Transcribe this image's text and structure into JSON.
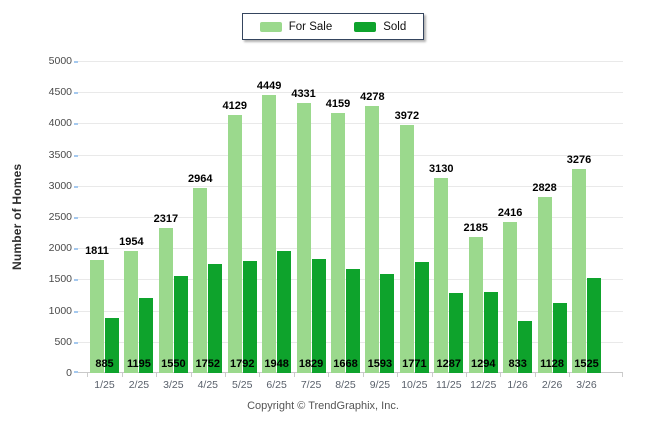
{
  "chart_data": {
    "type": "bar",
    "title": "",
    "categories": [
      "1/25",
      "2/25",
      "3/25",
      "4/25",
      "5/25",
      "6/25",
      "7/25",
      "8/25",
      "9/25",
      "10/25",
      "11/25",
      "12/25",
      "1/26",
      "2/26",
      "3/26"
    ],
    "series": [
      {
        "name": "For Sale",
        "color": "#9bd98d",
        "values": [
          1811,
          1954,
          2317,
          2964,
          4129,
          4449,
          4331,
          4159,
          4278,
          3972,
          3130,
          2185,
          2416,
          2828,
          3276
        ]
      },
      {
        "name": "Sold",
        "color": "#0ea32c",
        "values": [
          885,
          1195,
          1550,
          1752,
          1792,
          1948,
          1829,
          1668,
          1593,
          1771,
          1287,
          1294,
          833,
          1128,
          1525
        ]
      }
    ],
    "xlabel": "",
    "ylabel": "Number of Homes",
    "ylim": [
      0,
      5000
    ],
    "ytick_step": 500,
    "grid": true,
    "value_labels": "For Sale above bars, Sold at bar base",
    "legend_position": "top-center"
  },
  "legend": {
    "items": [
      {
        "label": "For Sale",
        "color": "#9bd98d"
      },
      {
        "label": "Sold",
        "color": "#0ea32c"
      }
    ]
  },
  "footer": {
    "copyright": "Copyright © TrendGraphix, Inc."
  },
  "colors": {
    "for_sale": "#9bd98d",
    "sold": "#0ea32c",
    "gridline": "#e9e9e9",
    "axis_line": "#c9c9c9",
    "y_axis_tick": "#a5c9ef",
    "tick_label": "#4a4a4a",
    "legend_border": "#35455e"
  }
}
